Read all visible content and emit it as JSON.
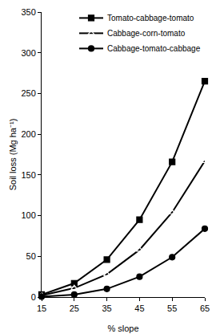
{
  "chart_data": {
    "type": "line",
    "x_label": "% slope",
    "y_label": "Soil loss (Mg ha⁻¹)",
    "x": [
      15,
      25,
      35,
      45,
      55,
      65
    ],
    "series": [
      {
        "name": "Tomato-cabbage-tomato",
        "color": "#000000",
        "marker": "square",
        "line_style": "solid",
        "values": [
          3,
          17,
          46,
          95,
          166,
          265
        ]
      },
      {
        "name": "Cabbage-corn-tomato",
        "color": "#000000",
        "marker": "triangle-up-open",
        "line_style": "solid",
        "values": [
          2,
          11,
          28,
          58,
          104,
          167
        ]
      },
      {
        "name": "Cabbage-tomato-cabbage",
        "color": "#000000",
        "marker": "circle",
        "line_style": "solid",
        "values": [
          0.5,
          3,
          10,
          25,
          49,
          84
        ]
      }
    ],
    "xlim": [
      15,
      65
    ],
    "xticks": [
      15,
      25,
      35,
      45,
      55,
      65
    ],
    "ylim": [
      0,
      350
    ],
    "yticks": [
      0,
      50,
      100,
      150,
      200,
      250,
      300,
      350
    ],
    "grid": false,
    "legend": "top right"
  }
}
